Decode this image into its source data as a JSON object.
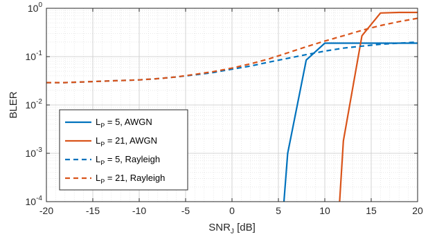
{
  "chart_data": {
    "type": "line",
    "xlabel": {
      "base": "SNR",
      "sub": "J",
      "rest": " [dB]"
    },
    "ylabel": "BLER",
    "xlim": [
      -20,
      20
    ],
    "ylim": [
      0.0001,
      1
    ],
    "yscale": "log",
    "grid": true,
    "minor_grid": true,
    "legend_position": "lower-left",
    "x_ticks": [
      -20,
      -15,
      -10,
      -5,
      0,
      5,
      10,
      15,
      20
    ],
    "x_tick_labels": [
      "-20",
      "-15",
      "-10",
      "-5",
      "0",
      "5",
      "10",
      "15",
      "20"
    ],
    "y_ticks": [
      {
        "value": 1,
        "base": "10",
        "exp": "0"
      },
      {
        "value": 0.1,
        "base": "10",
        "exp": "-1"
      },
      {
        "value": 0.01,
        "base": "10",
        "exp": "-2"
      },
      {
        "value": 0.001,
        "base": "10",
        "exp": "-3"
      },
      {
        "value": 0.0001,
        "base": "10",
        "exp": "-4"
      }
    ],
    "series": [
      {
        "label": {
          "base": "L",
          "sub": "P",
          "rest": " = 5, AWGN"
        },
        "color": "#0072BD",
        "dash": "solid",
        "x": [
          5.6,
          6,
          8,
          10,
          12,
          14,
          16,
          18,
          20
        ],
        "y": [
          0.0001,
          0.001,
          0.085,
          0.19,
          0.19,
          0.19,
          0.19,
          0.19,
          0.19
        ]
      },
      {
        "label": {
          "base": "L",
          "sub": "P",
          "rest": " = 21, AWGN"
        },
        "color": "#D95319",
        "dash": "solid",
        "x": [
          11.6,
          12,
          14,
          16,
          18,
          20
        ],
        "y": [
          0.0001,
          0.0018,
          0.27,
          0.8,
          0.82,
          0.82
        ]
      },
      {
        "label": {
          "base": "L",
          "sub": "P",
          "rest": " = 5, Rayleigh"
        },
        "color": "#0072BD",
        "dash": "dashed",
        "x": [
          -20,
          -18,
          -16,
          -14,
          -12,
          -10,
          -8,
          -6,
          -4,
          -2,
          0,
          2,
          4,
          6,
          8,
          10,
          12,
          14,
          16,
          18,
          20
        ],
        "y": [
          0.029,
          0.029,
          0.03,
          0.031,
          0.032,
          0.033,
          0.035,
          0.038,
          0.042,
          0.047,
          0.055,
          0.064,
          0.077,
          0.092,
          0.11,
          0.13,
          0.15,
          0.165,
          0.18,
          0.19,
          0.2
        ]
      },
      {
        "label": {
          "base": "L",
          "sub": "P",
          "rest": " = 21, Rayleigh"
        },
        "color": "#D95319",
        "dash": "dashed",
        "x": [
          -20,
          -18,
          -16,
          -14,
          -12,
          -10,
          -8,
          -6,
          -4,
          -2,
          0,
          2,
          4,
          6,
          8,
          10,
          12,
          14,
          16,
          18,
          20
        ],
        "y": [
          0.029,
          0.029,
          0.03,
          0.031,
          0.032,
          0.033,
          0.035,
          0.038,
          0.043,
          0.049,
          0.058,
          0.071,
          0.09,
          0.12,
          0.16,
          0.21,
          0.27,
          0.35,
          0.44,
          0.53,
          0.62
        ]
      }
    ]
  }
}
